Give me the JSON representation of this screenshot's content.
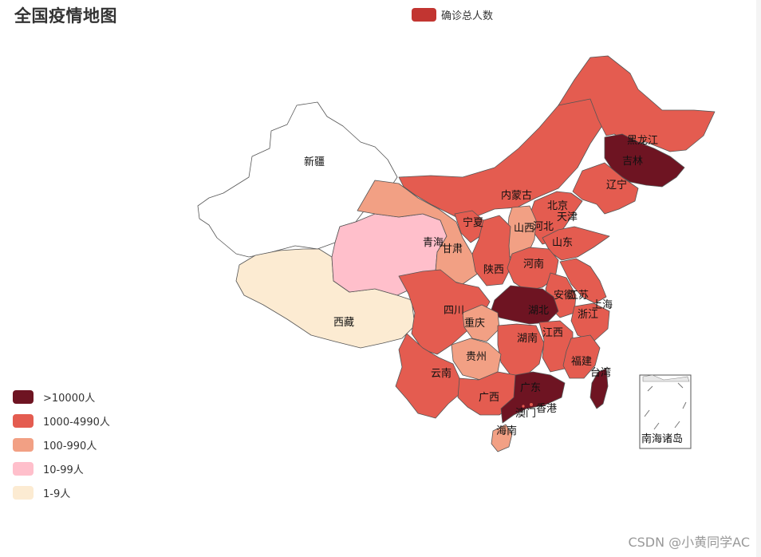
{
  "title": "全国疫情地图",
  "watermark": "CSDN @小黄同学AC",
  "chart_data": {
    "type": "map",
    "series": [
      {
        "name": "确诊总人数",
        "color": "#c23531"
      }
    ],
    "visual_map": {
      "position": "bottom-left",
      "pieces": [
        {
          "label": ">10000人",
          "color": "#6e1422"
        },
        {
          "label": "1000-4990人",
          "color": "#e45c50"
        },
        {
          "label": "100-990人",
          "color": "#f2a084"
        },
        {
          "label": "10-99人",
          "color": "#ffbfcb"
        },
        {
          "label": "1-9人",
          "color": "#fcebd2"
        }
      ]
    },
    "regions": [
      {
        "name": "新疆",
        "color": "#ffffff"
      },
      {
        "name": "西藏",
        "color": "#fcebd2"
      },
      {
        "name": "青海",
        "color": "#ffbfcb"
      },
      {
        "name": "甘肃",
        "color": "#f2a084"
      },
      {
        "name": "内蒙古",
        "color": "#e45c50"
      },
      {
        "name": "黑龙江",
        "color": "#e45c50"
      },
      {
        "name": "吉林",
        "color": "#6e1422"
      },
      {
        "name": "辽宁",
        "color": "#e45c50"
      },
      {
        "name": "北京",
        "color": "#e45c50"
      },
      {
        "name": "天津",
        "color": "#e45c50"
      },
      {
        "name": "河北",
        "color": "#e45c50"
      },
      {
        "name": "山西",
        "color": "#f2a084"
      },
      {
        "name": "山东",
        "color": "#e45c50"
      },
      {
        "name": "宁夏",
        "color": "#e45c50"
      },
      {
        "name": "陕西",
        "color": "#e45c50"
      },
      {
        "name": "河南",
        "color": "#e45c50"
      },
      {
        "name": "江苏",
        "color": "#e45c50"
      },
      {
        "name": "安徽",
        "color": "#e45c50"
      },
      {
        "name": "上海",
        "color": "#e45c50"
      },
      {
        "name": "浙江",
        "color": "#e45c50"
      },
      {
        "name": "湖北",
        "color": "#6e1422"
      },
      {
        "name": "四川",
        "color": "#e45c50"
      },
      {
        "name": "重庆",
        "color": "#f2a084"
      },
      {
        "name": "湖南",
        "color": "#e45c50"
      },
      {
        "name": "江西",
        "color": "#e45c50"
      },
      {
        "name": "贵州",
        "color": "#f2a084"
      },
      {
        "name": "福建",
        "color": "#e45c50"
      },
      {
        "name": "台湾",
        "color": "#6e1422"
      },
      {
        "name": "云南",
        "color": "#e45c50"
      },
      {
        "name": "广西",
        "color": "#e45c50"
      },
      {
        "name": "广东",
        "color": "#6e1422"
      },
      {
        "name": "香港",
        "color": "#e45c50"
      },
      {
        "name": "澳门",
        "color": "#e45c50"
      },
      {
        "name": "海南",
        "color": "#f2a084"
      },
      {
        "name": "南海诸岛",
        "color": "#ffffff"
      }
    ]
  }
}
